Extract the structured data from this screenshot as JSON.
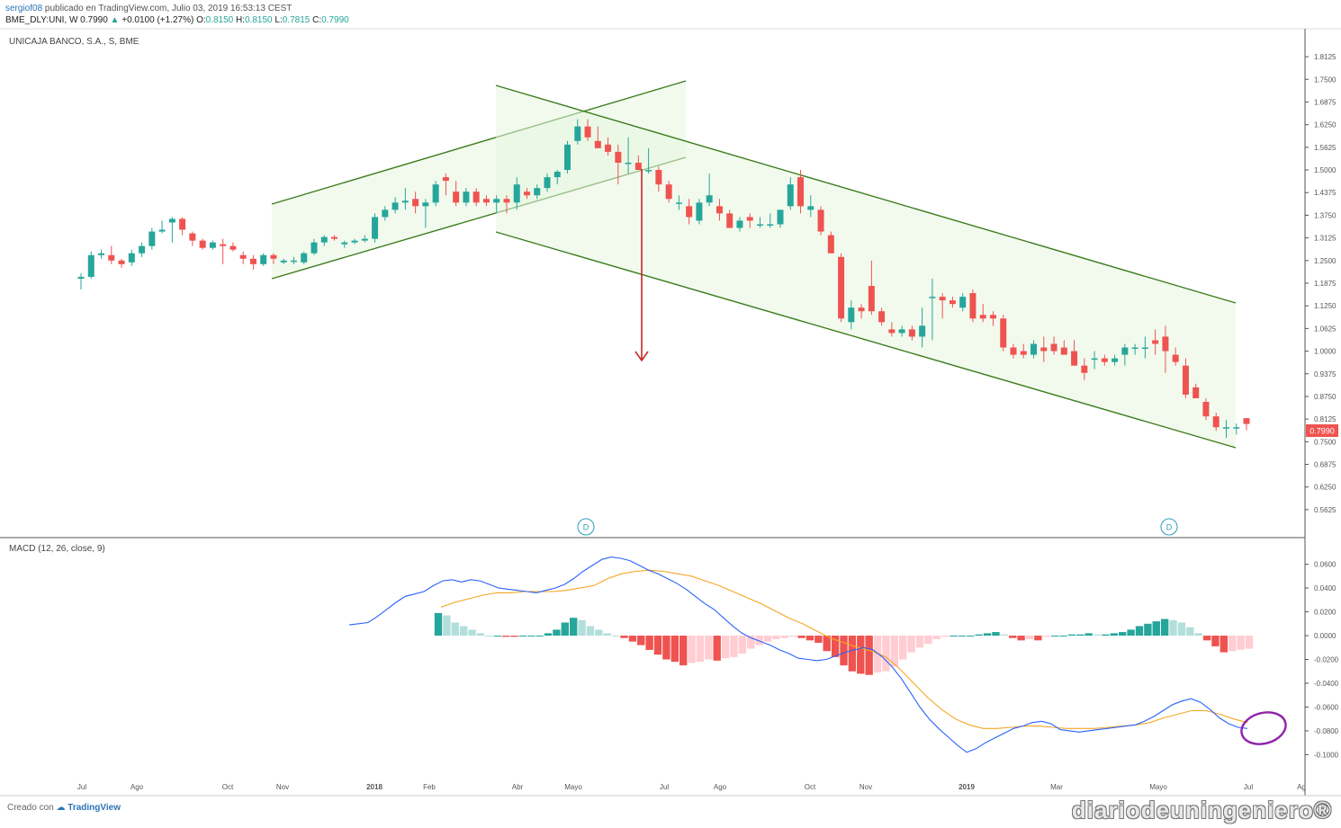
{
  "header": {
    "user": "sergiof08",
    "published_text": "publicado en TradingView.com, Julio 03, 2019 16:53:13 CEST",
    "symbol": "BME_DLY:UNI, W",
    "last": "0.7990",
    "change": "+0.0100 (+1.27%)",
    "o_label": "O:",
    "o_value": "0.8150",
    "h_label": "H:",
    "h_value": "0.8150",
    "l_label": "L:",
    "l_value": "0.7815",
    "c_label": "C:",
    "c_value": "0.7990"
  },
  "chart_title": "UNICAJA BANCO, S.A., S, BME",
  "macd_title": "MACD (12, 26, close, 9)",
  "footer": {
    "prefix": "Creado con",
    "brand": "TradingView"
  },
  "watermark": "diariodeuningeniero®",
  "colors": {
    "up": "#26a69a",
    "down": "#ef5350",
    "macd": "#2962ff",
    "signal": "#f5a623",
    "hist_up_strong": "#26a69a",
    "hist_up_weak": "#b2dfdb",
    "hist_down_strong": "#ef5350",
    "hist_down_weak": "#ffcdd2",
    "channel": "#3a7d1e",
    "arrow": "#c62828",
    "circle": "#8e24aa"
  },
  "chart_data": [
    {
      "type": "candlestick",
      "title": "UNICAJA BANCO, S.A., S, BME",
      "x_tick_labels": [
        "Jul",
        "Ago",
        "Oct",
        "Nov",
        "2018",
        "Feb",
        "Abr",
        "Mayo",
        "Jul",
        "Ago",
        "Oct",
        "Nov",
        "2019",
        "Mar",
        "Mayo",
        "Jul",
        "Ag"
      ],
      "y_tick_labels": [
        "1.8125",
        "1.7500",
        "1.6875",
        "1.6250",
        "1.5625",
        "1.5000",
        "1.4375",
        "1.3750",
        "1.3125",
        "1.2500",
        "1.1875",
        "1.1250",
        "1.0625",
        "1.0000",
        "0.9375",
        "0.8750",
        "0.8125",
        "0.7500",
        "0.6875",
        "0.6250",
        "0.5625"
      ],
      "ylim": [
        0.53,
        1.84
      ],
      "last_price_label": "0.7990",
      "event_markers": [
        "D",
        "D"
      ],
      "candles": [
        {
          "o": 1.2,
          "h": 1.215,
          "l": 1.17,
          "c": 1.205
        },
        {
          "o": 1.205,
          "h": 1.275,
          "l": 1.2,
          "c": 1.265
        },
        {
          "o": 1.265,
          "h": 1.28,
          "l": 1.255,
          "c": 1.27
        },
        {
          "o": 1.265,
          "h": 1.29,
          "l": 1.24,
          "c": 1.25
        },
        {
          "o": 1.25,
          "h": 1.255,
          "l": 1.23,
          "c": 1.24
        },
        {
          "o": 1.245,
          "h": 1.28,
          "l": 1.235,
          "c": 1.27
        },
        {
          "o": 1.27,
          "h": 1.3,
          "l": 1.26,
          "c": 1.29
        },
        {
          "o": 1.29,
          "h": 1.34,
          "l": 1.28,
          "c": 1.33
        },
        {
          "o": 1.33,
          "h": 1.36,
          "l": 1.325,
          "c": 1.335
        },
        {
          "o": 1.355,
          "h": 1.37,
          "l": 1.3,
          "c": 1.365
        },
        {
          "o": 1.365,
          "h": 1.37,
          "l": 1.32,
          "c": 1.335
        },
        {
          "o": 1.325,
          "h": 1.33,
          "l": 1.29,
          "c": 1.305
        },
        {
          "o": 1.305,
          "h": 1.31,
          "l": 1.28,
          "c": 1.285
        },
        {
          "o": 1.285,
          "h": 1.305,
          "l": 1.28,
          "c": 1.3
        },
        {
          "o": 1.295,
          "h": 1.31,
          "l": 1.24,
          "c": 1.29
        },
        {
          "o": 1.29,
          "h": 1.3,
          "l": 1.275,
          "c": 1.28
        },
        {
          "o": 1.265,
          "h": 1.275,
          "l": 1.24,
          "c": 1.255
        },
        {
          "o": 1.255,
          "h": 1.265,
          "l": 1.225,
          "c": 1.24
        },
        {
          "o": 1.24,
          "h": 1.27,
          "l": 1.235,
          "c": 1.265
        },
        {
          "o": 1.265,
          "h": 1.27,
          "l": 1.24,
          "c": 1.255
        },
        {
          "o": 1.245,
          "h": 1.255,
          "l": 1.24,
          "c": 1.25
        },
        {
          "o": 1.25,
          "h": 1.26,
          "l": 1.24,
          "c": 1.25
        },
        {
          "o": 1.245,
          "h": 1.275,
          "l": 1.24,
          "c": 1.27
        },
        {
          "o": 1.27,
          "h": 1.31,
          "l": 1.265,
          "c": 1.3
        },
        {
          "o": 1.3,
          "h": 1.32,
          "l": 1.29,
          "c": 1.315
        },
        {
          "o": 1.315,
          "h": 1.32,
          "l": 1.305,
          "c": 1.31
        },
        {
          "o": 1.295,
          "h": 1.305,
          "l": 1.285,
          "c": 1.3
        },
        {
          "o": 1.3,
          "h": 1.31,
          "l": 1.295,
          "c": 1.305
        },
        {
          "o": 1.305,
          "h": 1.32,
          "l": 1.3,
          "c": 1.31
        },
        {
          "o": 1.31,
          "h": 1.38,
          "l": 1.3,
          "c": 1.37
        },
        {
          "o": 1.37,
          "h": 1.4,
          "l": 1.36,
          "c": 1.39
        },
        {
          "o": 1.39,
          "h": 1.425,
          "l": 1.38,
          "c": 1.41
        },
        {
          "o": 1.41,
          "h": 1.45,
          "l": 1.39,
          "c": 1.415
        },
        {
          "o": 1.42,
          "h": 1.44,
          "l": 1.38,
          "c": 1.4
        },
        {
          "o": 1.4,
          "h": 1.42,
          "l": 1.34,
          "c": 1.41
        },
        {
          "o": 1.41,
          "h": 1.47,
          "l": 1.4,
          "c": 1.46
        },
        {
          "o": 1.48,
          "h": 1.49,
          "l": 1.43,
          "c": 1.47
        },
        {
          "o": 1.44,
          "h": 1.47,
          "l": 1.4,
          "c": 1.41
        },
        {
          "o": 1.41,
          "h": 1.45,
          "l": 1.4,
          "c": 1.44
        },
        {
          "o": 1.44,
          "h": 1.45,
          "l": 1.4,
          "c": 1.41
        },
        {
          "o": 1.42,
          "h": 1.43,
          "l": 1.4,
          "c": 1.41
        },
        {
          "o": 1.41,
          "h": 1.43,
          "l": 1.38,
          "c": 1.42
        },
        {
          "o": 1.42,
          "h": 1.43,
          "l": 1.38,
          "c": 1.41
        },
        {
          "o": 1.41,
          "h": 1.48,
          "l": 1.39,
          "c": 1.46
        },
        {
          "o": 1.44,
          "h": 1.45,
          "l": 1.42,
          "c": 1.43
        },
        {
          "o": 1.43,
          "h": 1.46,
          "l": 1.42,
          "c": 1.45
        },
        {
          "o": 1.45,
          "h": 1.49,
          "l": 1.44,
          "c": 1.48
        },
        {
          "o": 1.48,
          "h": 1.5,
          "l": 1.46,
          "c": 1.495
        },
        {
          "o": 1.5,
          "h": 1.58,
          "l": 1.49,
          "c": 1.57
        },
        {
          "o": 1.58,
          "h": 1.64,
          "l": 1.57,
          "c": 1.62
        },
        {
          "o": 1.62,
          "h": 1.64,
          "l": 1.58,
          "c": 1.59
        },
        {
          "o": 1.58,
          "h": 1.62,
          "l": 1.56,
          "c": 1.56
        },
        {
          "o": 1.57,
          "h": 1.59,
          "l": 1.54,
          "c": 1.55
        },
        {
          "o": 1.55,
          "h": 1.57,
          "l": 1.46,
          "c": 1.52
        },
        {
          "o": 1.52,
          "h": 1.59,
          "l": 1.49,
          "c": 1.52
        },
        {
          "o": 1.52,
          "h": 1.54,
          "l": 1.5,
          "c": 1.5
        },
        {
          "o": 1.5,
          "h": 1.56,
          "l": 1.49,
          "c": 1.5
        },
        {
          "o": 1.5,
          "h": 1.51,
          "l": 1.44,
          "c": 1.46
        },
        {
          "o": 1.46,
          "h": 1.47,
          "l": 1.41,
          "c": 1.42
        },
        {
          "o": 1.41,
          "h": 1.43,
          "l": 1.39,
          "c": 1.41
        },
        {
          "o": 1.4,
          "h": 1.42,
          "l": 1.35,
          "c": 1.37
        },
        {
          "o": 1.36,
          "h": 1.42,
          "l": 1.35,
          "c": 1.41
        },
        {
          "o": 1.41,
          "h": 1.49,
          "l": 1.4,
          "c": 1.43
        },
        {
          "o": 1.4,
          "h": 1.42,
          "l": 1.36,
          "c": 1.38
        },
        {
          "o": 1.38,
          "h": 1.39,
          "l": 1.34,
          "c": 1.34
        },
        {
          "o": 1.34,
          "h": 1.37,
          "l": 1.33,
          "c": 1.36
        },
        {
          "o": 1.37,
          "h": 1.38,
          "l": 1.34,
          "c": 1.36
        },
        {
          "o": 1.35,
          "h": 1.37,
          "l": 1.34,
          "c": 1.35
        },
        {
          "o": 1.35,
          "h": 1.38,
          "l": 1.34,
          "c": 1.35
        },
        {
          "o": 1.35,
          "h": 1.39,
          "l": 1.34,
          "c": 1.39
        },
        {
          "o": 1.4,
          "h": 1.48,
          "l": 1.39,
          "c": 1.46
        },
        {
          "o": 1.48,
          "h": 1.5,
          "l": 1.38,
          "c": 1.4
        },
        {
          "o": 1.39,
          "h": 1.43,
          "l": 1.37,
          "c": 1.4
        },
        {
          "o": 1.39,
          "h": 1.4,
          "l": 1.32,
          "c": 1.33
        },
        {
          "o": 1.32,
          "h": 1.33,
          "l": 1.27,
          "c": 1.27
        },
        {
          "o": 1.26,
          "h": 1.27,
          "l": 1.08,
          "c": 1.09
        },
        {
          "o": 1.08,
          "h": 1.14,
          "l": 1.06,
          "c": 1.12
        },
        {
          "o": 1.12,
          "h": 1.13,
          "l": 1.09,
          "c": 1.11
        },
        {
          "o": 1.18,
          "h": 1.25,
          "l": 1.1,
          "c": 1.11
        },
        {
          "o": 1.11,
          "h": 1.12,
          "l": 1.07,
          "c": 1.08
        },
        {
          "o": 1.06,
          "h": 1.08,
          "l": 1.04,
          "c": 1.05
        },
        {
          "o": 1.05,
          "h": 1.07,
          "l": 1.04,
          "c": 1.06
        },
        {
          "o": 1.06,
          "h": 1.07,
          "l": 1.03,
          "c": 1.04
        },
        {
          "o": 1.04,
          "h": 1.12,
          "l": 1.01,
          "c": 1.07
        },
        {
          "o": 1.15,
          "h": 1.2,
          "l": 1.03,
          "c": 1.15
        },
        {
          "o": 1.15,
          "h": 1.16,
          "l": 1.09,
          "c": 1.14
        },
        {
          "o": 1.14,
          "h": 1.15,
          "l": 1.12,
          "c": 1.13
        },
        {
          "o": 1.12,
          "h": 1.16,
          "l": 1.11,
          "c": 1.15
        },
        {
          "o": 1.16,
          "h": 1.17,
          "l": 1.08,
          "c": 1.09
        },
        {
          "o": 1.1,
          "h": 1.13,
          "l": 1.08,
          "c": 1.09
        },
        {
          "o": 1.1,
          "h": 1.11,
          "l": 1.07,
          "c": 1.09
        },
        {
          "o": 1.09,
          "h": 1.1,
          "l": 1.0,
          "c": 1.01
        },
        {
          "o": 1.01,
          "h": 1.02,
          "l": 0.98,
          "c": 0.99
        },
        {
          "o": 1.0,
          "h": 1.02,
          "l": 0.98,
          "c": 0.99
        },
        {
          "o": 0.99,
          "h": 1.03,
          "l": 0.98,
          "c": 1.02
        },
        {
          "o": 1.01,
          "h": 1.04,
          "l": 0.97,
          "c": 1.0
        },
        {
          "o": 1.02,
          "h": 1.04,
          "l": 0.99,
          "c": 1.0
        },
        {
          "o": 1.01,
          "h": 1.03,
          "l": 0.99,
          "c": 0.99
        },
        {
          "o": 1.0,
          "h": 1.03,
          "l": 0.96,
          "c": 0.96
        },
        {
          "o": 0.96,
          "h": 0.98,
          "l": 0.92,
          "c": 0.94
        },
        {
          "o": 0.98,
          "h": 1.0,
          "l": 0.95,
          "c": 0.98
        },
        {
          "o": 0.98,
          "h": 0.99,
          "l": 0.96,
          "c": 0.97
        },
        {
          "o": 0.97,
          "h": 0.99,
          "l": 0.96,
          "c": 0.98
        },
        {
          "o": 0.99,
          "h": 1.02,
          "l": 0.96,
          "c": 1.01
        },
        {
          "o": 1.01,
          "h": 1.02,
          "l": 0.99,
          "c": 1.01
        },
        {
          "o": 1.01,
          "h": 1.04,
          "l": 0.98,
          "c": 1.01
        },
        {
          "o": 1.03,
          "h": 1.06,
          "l": 0.99,
          "c": 1.02
        },
        {
          "o": 1.04,
          "h": 1.07,
          "l": 0.94,
          "c": 1.0
        },
        {
          "o": 0.99,
          "h": 1.01,
          "l": 0.96,
          "c": 0.97
        },
        {
          "o": 0.96,
          "h": 0.98,
          "l": 0.87,
          "c": 0.88
        },
        {
          "o": 0.9,
          "h": 0.91,
          "l": 0.87,
          "c": 0.87
        },
        {
          "o": 0.86,
          "h": 0.87,
          "l": 0.81,
          "c": 0.82
        },
        {
          "o": 0.82,
          "h": 0.83,
          "l": 0.78,
          "c": 0.79
        },
        {
          "o": 0.79,
          "h": 0.81,
          "l": 0.76,
          "c": 0.79
        },
        {
          "o": 0.79,
          "h": 0.8,
          "l": 0.77,
          "c": 0.79
        },
        {
          "o": 0.815,
          "h": 0.815,
          "l": 0.7815,
          "c": 0.799
        }
      ]
    },
    {
      "type": "line",
      "title": "MACD (12, 26, close, 9)",
      "x_tick_labels": [
        "Jul",
        "Ago",
        "Oct",
        "Nov",
        "2018",
        "Feb",
        "Abr",
        "Mayo",
        "Jul",
        "Ago",
        "Oct",
        "Nov",
        "2019",
        "Mar",
        "Mayo",
        "Jul",
        "Ag"
      ],
      "y_tick_labels": [
        "0.0600",
        "0.0400",
        "0.0200",
        "0.0000",
        "-0.0200",
        "-0.0400",
        "-0.0600",
        "-0.0800",
        "-0.1000"
      ],
      "ylim": [
        -0.108,
        0.068
      ],
      "series": [
        {
          "values": [
            0.009,
            0.01,
            0.011,
            0.016,
            0.022,
            0.028,
            0.033,
            0.035,
            0.037,
            0.042,
            0.046,
            0.047,
            0.045,
            0.047,
            0.046,
            0.043,
            0.04,
            0.039,
            0.038,
            0.037,
            0.036,
            0.038,
            0.04,
            0.043,
            0.048,
            0.054,
            0.059,
            0.064,
            0.066,
            0.065,
            0.063,
            0.059,
            0.055,
            0.052,
            0.048,
            0.044,
            0.039,
            0.033,
            0.027,
            0.022,
            0.015,
            0.008,
            0.002,
            -0.002,
            -0.005,
            -0.008,
            -0.012,
            -0.015,
            -0.019,
            -0.02,
            -0.021,
            -0.02,
            -0.017,
            -0.014,
            -0.012,
            -0.01,
            -0.012,
            -0.018,
            -0.026,
            -0.036,
            -0.048,
            -0.06,
            -0.07,
            -0.078,
            -0.085,
            -0.092,
            -0.098,
            -0.095,
            -0.09,
            -0.086,
            -0.082,
            -0.078,
            -0.076,
            -0.073,
            -0.072,
            -0.074,
            -0.079,
            -0.08,
            -0.081,
            -0.08,
            -0.079,
            -0.078,
            -0.077,
            -0.076,
            -0.075,
            -0.072,
            -0.068,
            -0.063,
            -0.058,
            -0.055,
            -0.053,
            -0.056,
            -0.062,
            -0.069,
            -0.074,
            -0.077,
            -0.078
          ]
        },
        {
          "values": [
            0.024,
            0.028,
            0.031,
            0.034,
            0.036,
            0.036,
            0.037,
            0.037,
            0.037,
            0.038,
            0.04,
            0.042,
            0.048,
            0.052,
            0.054,
            0.055,
            0.054,
            0.052,
            0.05,
            0.046,
            0.042,
            0.037,
            0.032,
            0.027,
            0.021,
            0.015,
            0.01,
            0.004,
            -0.002,
            -0.006,
            -0.01,
            -0.013,
            -0.018,
            -0.028,
            -0.04,
            -0.052,
            -0.062,
            -0.07,
            -0.075,
            -0.078,
            -0.078,
            -0.077,
            -0.076,
            -0.076,
            -0.077,
            -0.078,
            -0.078,
            -0.078,
            -0.077,
            -0.076,
            -0.075,
            -0.073,
            -0.069,
            -0.066,
            -0.063,
            -0.063,
            -0.066,
            -0.07,
            -0.073
          ]
        }
      ],
      "histogram": [
        0.019,
        0.017,
        0.011,
        0.008,
        0.005,
        0.002,
        0.0,
        0.0,
        -0.001,
        -0.001,
        0.0,
        0.0,
        0.0,
        0.002,
        0.005,
        0.011,
        0.015,
        0.013,
        0.008,
        0.005,
        0.002,
        0.0,
        -0.002,
        -0.005,
        -0.008,
        -0.012,
        -0.016,
        -0.02,
        -0.022,
        -0.025,
        -0.023,
        -0.022,
        -0.02,
        -0.021,
        -0.019,
        -0.018,
        -0.015,
        -0.011,
        -0.008,
        -0.005,
        -0.003,
        -0.002,
        -0.001,
        -0.002,
        -0.004,
        -0.006,
        -0.013,
        -0.018,
        -0.025,
        -0.03,
        -0.032,
        -0.033,
        -0.031,
        -0.03,
        -0.026,
        -0.02,
        -0.014,
        -0.01,
        -0.007,
        -0.003,
        -0.001,
        0.0,
        0.0,
        0.0,
        0.001,
        0.002,
        0.003,
        0.001,
        -0.002,
        -0.004,
        -0.003,
        -0.004,
        -0.001,
        0.0,
        0.0,
        0.001,
        0.001,
        0.002,
        0.001,
        0.001,
        0.002,
        0.003,
        0.005,
        0.008,
        0.01,
        0.012,
        0.014,
        0.013,
        0.011,
        0.007,
        0.002,
        -0.004,
        -0.009,
        -0.014,
        -0.013,
        -0.012,
        -0.011
      ]
    }
  ]
}
